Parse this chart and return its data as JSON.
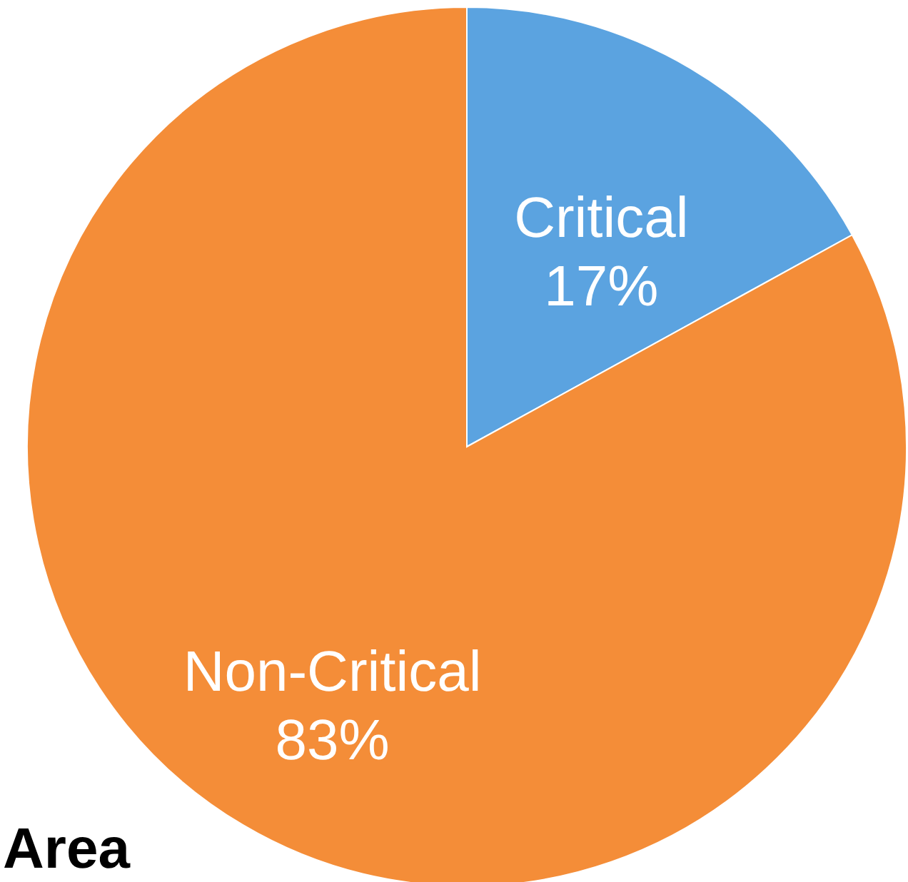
{
  "chart_data": {
    "type": "pie",
    "categories": [
      "Critical",
      "Non-Critical"
    ],
    "values": [
      17,
      83
    ],
    "value_labels": [
      "17%",
      "83%"
    ],
    "colors": [
      "#5ba3e0",
      "#f48d38"
    ],
    "annotations": [
      "Area"
    ]
  }
}
